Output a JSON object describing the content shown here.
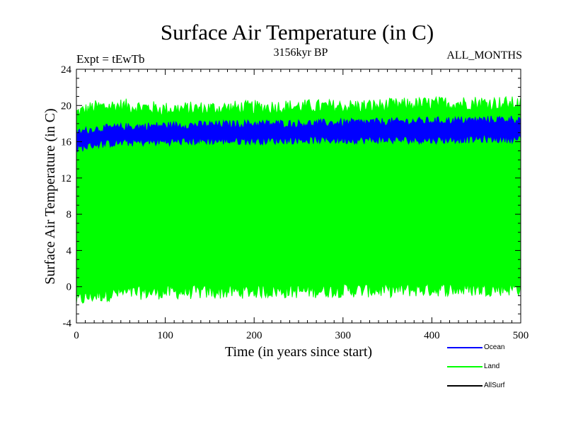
{
  "chart_data": {
    "type": "line",
    "title": "Surface Air Temperature (in C)",
    "subtitle": "3156kyr BP",
    "experiment_label": "Expt = tEwTb",
    "months_label": "ALL_MONTHS",
    "xlabel": "Time (in years since start)",
    "ylabel": "Surface Air Temperature (in C)",
    "xlim": [
      0,
      500
    ],
    "ylim": [
      -4,
      24
    ],
    "xticks": [
      0,
      100,
      200,
      300,
      400,
      500
    ],
    "yticks": [
      -4,
      0,
      4,
      8,
      12,
      16,
      20,
      24
    ],
    "series": [
      {
        "name": "Land",
        "color": "#00ff00",
        "x": [
          0,
          20,
          50,
          100,
          150,
          200,
          250,
          300,
          350,
          400,
          450,
          500
        ],
        "upper": [
          19.2,
          19.8,
          20.0,
          19.6,
          19.7,
          19.8,
          19.9,
          19.9,
          20.0,
          20.2,
          20.3,
          20.2
        ],
        "lower": [
          -1.5,
          -1.0,
          -0.7,
          -0.6,
          -0.6,
          -0.5,
          -0.5,
          -0.4,
          -0.4,
          -0.3,
          -0.3,
          -0.2
        ]
      },
      {
        "name": "Ocean",
        "color": "#0000ff",
        "x": [
          0,
          20,
          50,
          100,
          150,
          200,
          250,
          300,
          350,
          400,
          450,
          500
        ],
        "upper": [
          17.0,
          17.4,
          17.6,
          17.8,
          17.9,
          18.0,
          18.0,
          18.1,
          18.2,
          18.3,
          18.4,
          18.5
        ],
        "lower": [
          15.2,
          15.7,
          15.9,
          16.0,
          16.1,
          16.1,
          16.2,
          16.2,
          16.2,
          16.2,
          16.3,
          16.3
        ]
      },
      {
        "name": "AllSurf",
        "color": "#000000",
        "x": [],
        "values": []
      }
    ],
    "legend": [
      "Ocean",
      "Land",
      "AllSurf"
    ]
  }
}
